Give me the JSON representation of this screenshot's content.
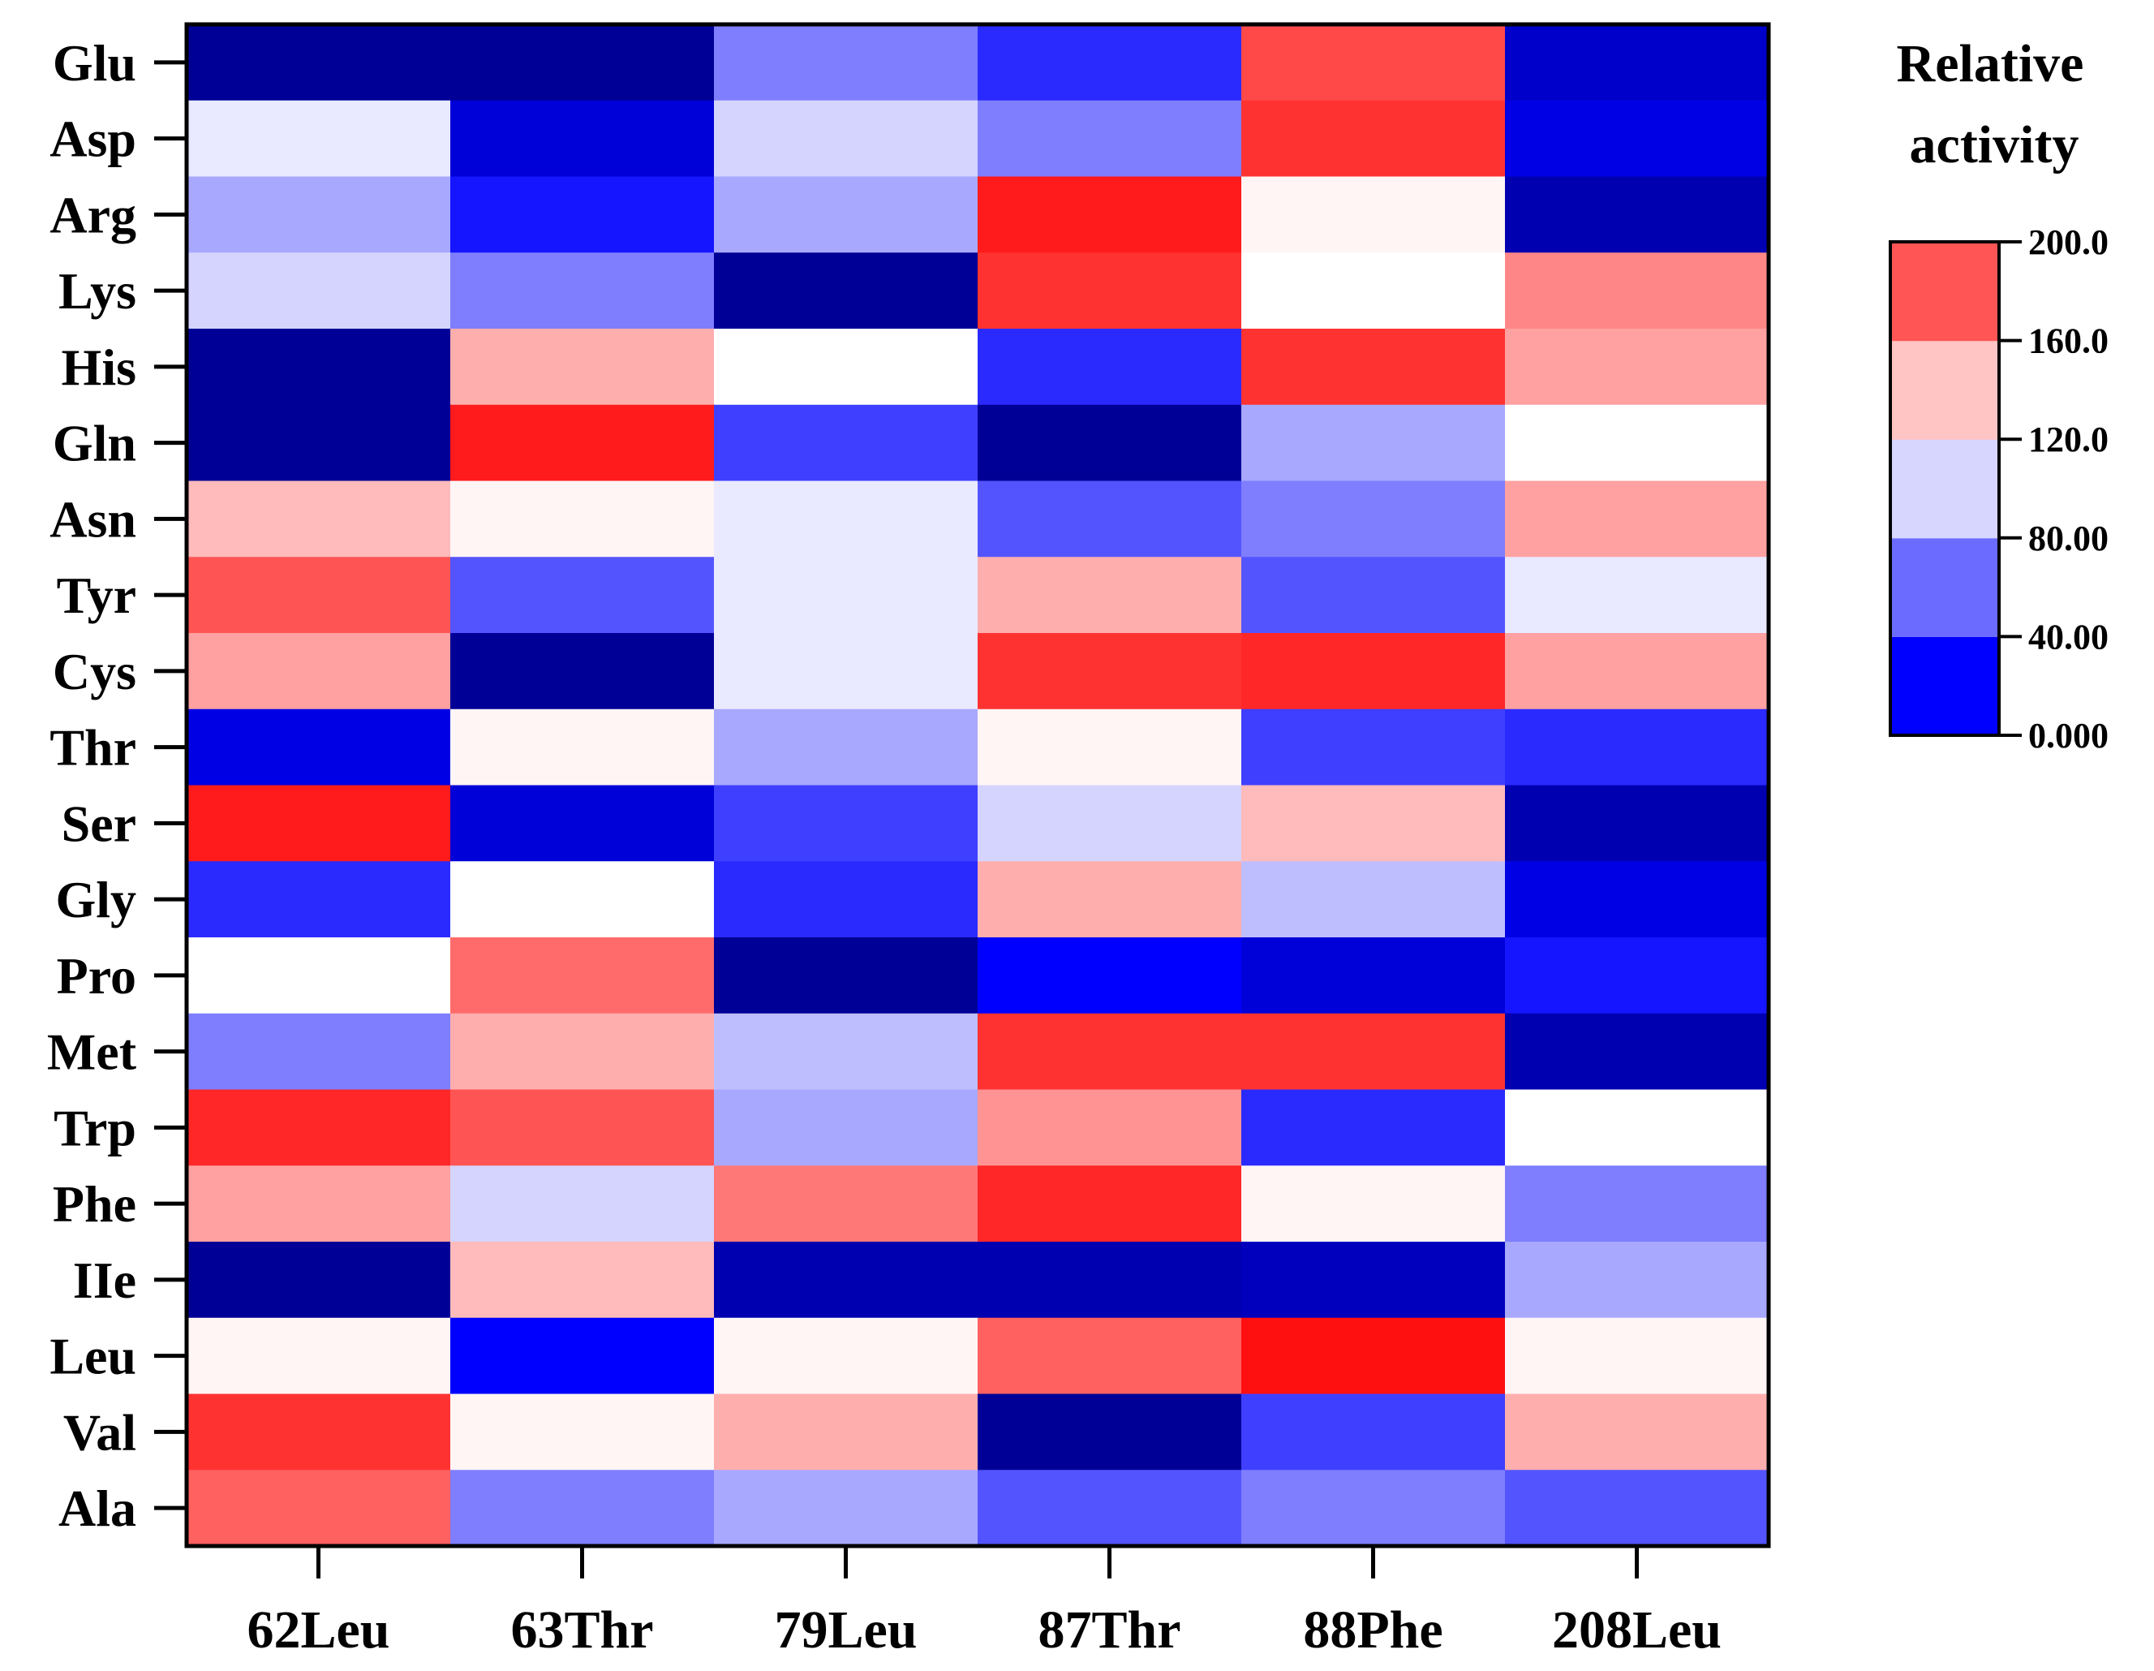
{
  "chart_data": {
    "type": "heatmap",
    "title": "",
    "xlabel": "",
    "ylabel": "",
    "columns": [
      "62Leu",
      "63Thr",
      "79Leu",
      "87Thr",
      "88Phe",
      "208Leu"
    ],
    "rows": [
      "Glu",
      "Asp",
      "Arg",
      "Lys",
      "His",
      "Gln",
      "Asn",
      "Tyr",
      "Cys",
      "Thr",
      "Ser",
      "Gly",
      "Pro",
      "Met",
      "Trp",
      "Phe",
      "IIe",
      "Leu",
      "Val",
      "Ala"
    ],
    "values": [
      [
        0,
        0,
        70,
        50,
        175,
        20
      ],
      [
        95,
        25,
        90,
        70,
        185,
        30
      ],
      [
        80,
        45,
        80,
        195,
        105,
        10
      ],
      [
        90,
        70,
        0,
        185,
        100,
        150
      ],
      [
        0,
        135,
        100,
        50,
        185,
        140
      ],
      [
        0,
        195,
        55,
        0,
        80,
        100
      ],
      [
        130,
        105,
        95,
        60,
        70,
        140
      ],
      [
        170,
        60,
        95,
        135,
        60,
        95
      ],
      [
        140,
        0,
        95,
        185,
        190,
        140
      ],
      [
        30,
        105,
        80,
        105,
        55,
        50
      ],
      [
        195,
        25,
        55,
        90,
        130,
        10
      ],
      [
        50,
        100,
        50,
        135,
        85,
        30
      ],
      [
        100,
        160,
        0,
        40,
        25,
        45
      ],
      [
        70,
        135,
        85,
        185,
        185,
        10
      ],
      [
        190,
        170,
        80,
        145,
        50,
        100
      ],
      [
        140,
        90,
        155,
        190,
        105,
        70
      ],
      [
        0,
        130,
        10,
        10,
        15,
        80
      ],
      [
        105,
        40,
        105,
        165,
        200,
        105
      ],
      [
        185,
        105,
        135,
        0,
        55,
        135
      ],
      [
        165,
        70,
        80,
        60,
        70,
        60
      ]
    ],
    "colorbar": {
      "title_lines": [
        "Relative",
        "activity"
      ],
      "range": [
        0,
        200
      ],
      "ticks": [
        "0.000",
        "40.00",
        "80.00",
        "120.0",
        "160.0",
        "200.0"
      ],
      "band_colors": [
        "#0000FF",
        "#6B6BFF",
        "#D6D6FF",
        "#FFC4C4",
        "#FF5555"
      ]
    },
    "colormap": {
      "stops": [
        0,
        40,
        80,
        100,
        120,
        160,
        200
      ],
      "colors": [
        "#000096",
        "#0000FF",
        "#A8A8FF",
        "#FFFFFF",
        "#FFD6D6",
        "#FF6B6B",
        "#FF1010"
      ]
    }
  }
}
